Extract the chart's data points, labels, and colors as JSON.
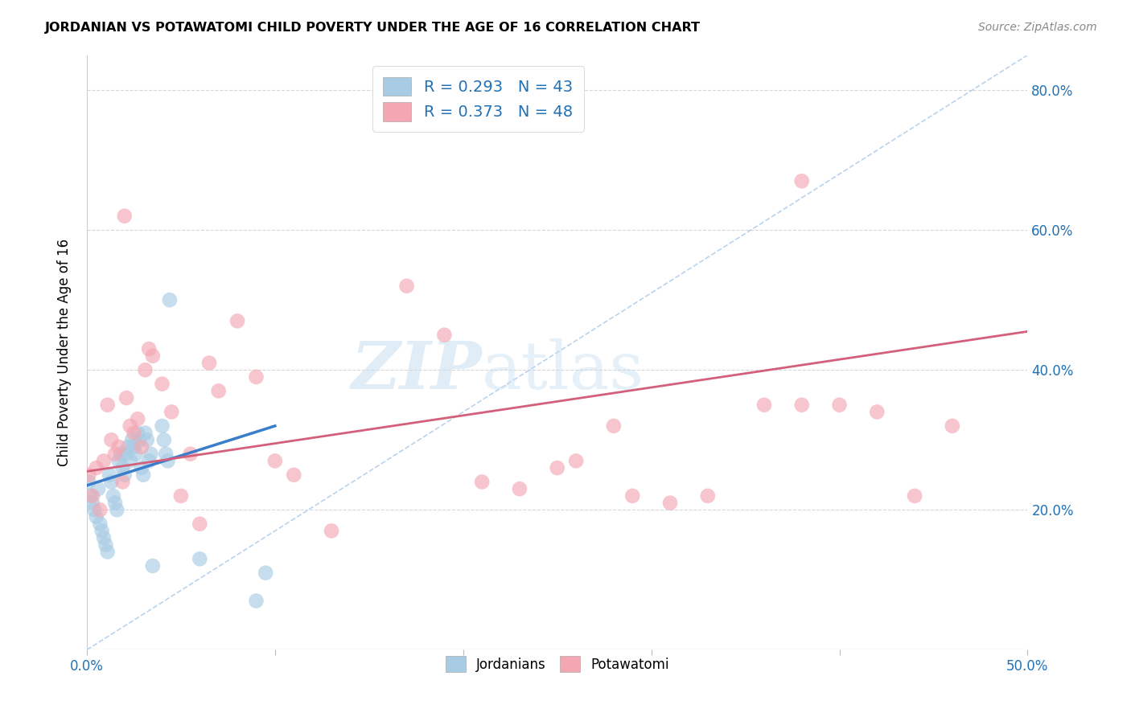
{
  "title": "JORDANIAN VS POTAWATOMI CHILD POVERTY UNDER THE AGE OF 16 CORRELATION CHART",
  "source": "Source: ZipAtlas.com",
  "ylabel": "Child Poverty Under the Age of 16",
  "xlim": [
    0.0,
    0.5
  ],
  "ylim": [
    0.0,
    0.85
  ],
  "xticks": [
    0.0,
    0.1,
    0.2,
    0.3,
    0.4,
    0.5
  ],
  "xtick_labels": [
    "0.0%",
    "",
    "",
    "",
    "",
    "50.0%"
  ],
  "right_ytick_labels": [
    "20.0%",
    "40.0%",
    "60.0%",
    "80.0%"
  ],
  "right_yticks": [
    0.2,
    0.4,
    0.6,
    0.8
  ],
  "blue_color": "#a8cce4",
  "pink_color": "#f4a7b2",
  "blue_line_color": "#3a7dc9",
  "pink_line_color": "#d45f7a",
  "diagonal_color": "#a8c8e8",
  "R_blue": 0.293,
  "N_blue": 43,
  "R_pink": 0.373,
  "N_pink": 48,
  "legend_label_blue": "Jordanians",
  "legend_label_pink": "Potawatomi",
  "blue_scatter_x": [
    0.001,
    0.002,
    0.003,
    0.004,
    0.005,
    0.006,
    0.007,
    0.008,
    0.009,
    0.01,
    0.011,
    0.012,
    0.013,
    0.014,
    0.015,
    0.016,
    0.017,
    0.018,
    0.019,
    0.02,
    0.021,
    0.022,
    0.023,
    0.024,
    0.025,
    0.026,
    0.027,
    0.028,
    0.029,
    0.03,
    0.031,
    0.032,
    0.033,
    0.034,
    0.035,
    0.04,
    0.041,
    0.042,
    0.043,
    0.044,
    0.06,
    0.09,
    0.095
  ],
  "blue_scatter_y": [
    0.24,
    0.22,
    0.21,
    0.2,
    0.19,
    0.23,
    0.18,
    0.17,
    0.16,
    0.15,
    0.14,
    0.25,
    0.24,
    0.22,
    0.21,
    0.2,
    0.27,
    0.28,
    0.26,
    0.25,
    0.28,
    0.29,
    0.27,
    0.3,
    0.29,
    0.28,
    0.31,
    0.3,
    0.26,
    0.25,
    0.31,
    0.3,
    0.27,
    0.28,
    0.12,
    0.32,
    0.3,
    0.28,
    0.27,
    0.5,
    0.13,
    0.07,
    0.11
  ],
  "pink_scatter_x": [
    0.001,
    0.003,
    0.005,
    0.007,
    0.009,
    0.011,
    0.013,
    0.015,
    0.017,
    0.019,
    0.021,
    0.023,
    0.025,
    0.027,
    0.029,
    0.031,
    0.033,
    0.035,
    0.04,
    0.045,
    0.05,
    0.055,
    0.06,
    0.065,
    0.07,
    0.08,
    0.09,
    0.1,
    0.11,
    0.13,
    0.17,
    0.19,
    0.21,
    0.23,
    0.25,
    0.26,
    0.28,
    0.29,
    0.31,
    0.33,
    0.36,
    0.38,
    0.4,
    0.42,
    0.44,
    0.46,
    0.38,
    0.02
  ],
  "pink_scatter_y": [
    0.25,
    0.22,
    0.26,
    0.2,
    0.27,
    0.35,
    0.3,
    0.28,
    0.29,
    0.24,
    0.36,
    0.32,
    0.31,
    0.33,
    0.29,
    0.4,
    0.43,
    0.42,
    0.38,
    0.34,
    0.22,
    0.28,
    0.18,
    0.41,
    0.37,
    0.47,
    0.39,
    0.27,
    0.25,
    0.17,
    0.52,
    0.45,
    0.24,
    0.23,
    0.26,
    0.27,
    0.32,
    0.22,
    0.21,
    0.22,
    0.35,
    0.35,
    0.35,
    0.34,
    0.22,
    0.32,
    0.67,
    0.62
  ],
  "blue_line_x0": 0.0,
  "blue_line_x1": 0.1,
  "blue_line_y0": 0.235,
  "blue_line_y1": 0.32,
  "pink_line_x0": 0.0,
  "pink_line_x1": 0.5,
  "pink_line_y0": 0.255,
  "pink_line_y1": 0.455
}
